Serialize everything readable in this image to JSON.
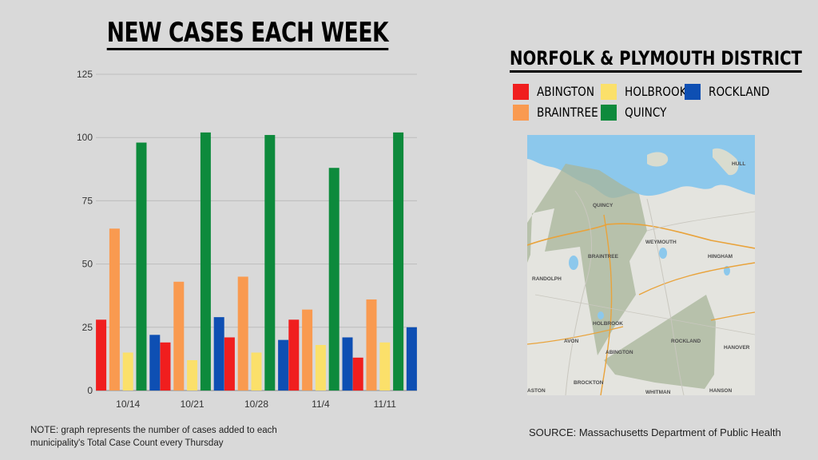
{
  "title": "NEW CASES EACH WEEK",
  "district_title": "NORFOLK & PLYMOUTH DISTRICT",
  "chart_data": {
    "type": "bar",
    "categories": [
      "10/14",
      "10/21",
      "10/28",
      "11/4",
      "11/11"
    ],
    "series": [
      {
        "name": "ABINGTON",
        "color": "#f01e1e",
        "values": [
          28,
          19,
          21,
          28,
          13
        ]
      },
      {
        "name": "BRAINTREE",
        "color": "#f99a50",
        "values": [
          64,
          43,
          45,
          32,
          36
        ]
      },
      {
        "name": "HOLBROOK",
        "color": "#fbe06a",
        "values": [
          15,
          12,
          15,
          18,
          19
        ]
      },
      {
        "name": "QUINCY",
        "color": "#0d8a3c",
        "values": [
          98,
          102,
          101,
          88,
          102
        ]
      },
      {
        "name": "ROCKLAND",
        "color": "#0e4fb3",
        "values": [
          22,
          29,
          20,
          21,
          25
        ]
      }
    ],
    "y_ticks": [
      0,
      25,
      50,
      75,
      100,
      125
    ],
    "ylim": [
      0,
      125
    ],
    "grid": true,
    "legend": "top-right"
  },
  "map": {
    "labels": [
      "QUINCY",
      "WEYMOUTH",
      "BRAINTREE",
      "HINGHAM",
      "RANDOLPH",
      "HOLBROOK",
      "AVON",
      "ABINGTON",
      "ROCKLAND",
      "HANOVER",
      "BROCKTON",
      "WHITMAN",
      "HANSON",
      "ASTON",
      "HULL"
    ]
  },
  "note": "NOTE: graph represents the number of cases added to each municipality's Total Case Count every Thursday",
  "source": "SOURCE: Massachusetts Department of Public Health"
}
